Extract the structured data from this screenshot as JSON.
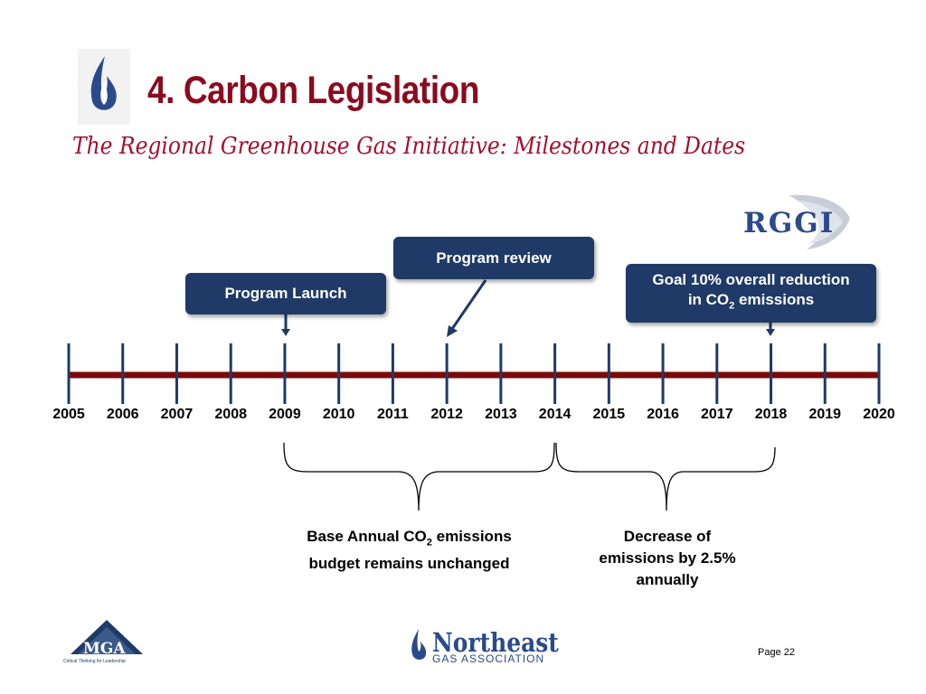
{
  "slide": {
    "title": "4. Carbon Legislation",
    "subtitle": "The Regional Greenhouse Gas Initiative: Milestones and Dates",
    "page": "Page 22"
  },
  "timeline": {
    "years": [
      "2005",
      "2006",
      "2007",
      "2008",
      "2009",
      "2010",
      "2011",
      "2012",
      "2013",
      "2014",
      "2015",
      "2016",
      "2017",
      "2018",
      "2019",
      "2020"
    ],
    "line_color": "#7a0a0a",
    "tick_color": "#1f3a66"
  },
  "callouts": {
    "program_launch": "Program Launch",
    "program_review": "Program review",
    "goal_line1": "Goal 10% overall reduction",
    "goal_line2_pre": "in CO",
    "goal_line2_sub": "2",
    "goal_line2_post": " emissions"
  },
  "notes": {
    "base_line1_pre": "Base Annual CO",
    "base_line1_sub": "2",
    "base_line1_post": " emissions",
    "base_line2": "budget remains unchanged",
    "decrease_line1": "Decrease of",
    "decrease_line2": "emissions by 2.5%",
    "decrease_line3": "annually"
  },
  "logos": {
    "rggi": "RGGI",
    "nga_name": "Northeast",
    "nga_sub": "GAS ASSOCIATION",
    "mga": "MGA",
    "mga_sub": "Critical Thinking for Leadership"
  },
  "colors": {
    "title": "#8b0a1e",
    "box": "#1f3a66",
    "accent_blue": "#2a4a8a"
  }
}
